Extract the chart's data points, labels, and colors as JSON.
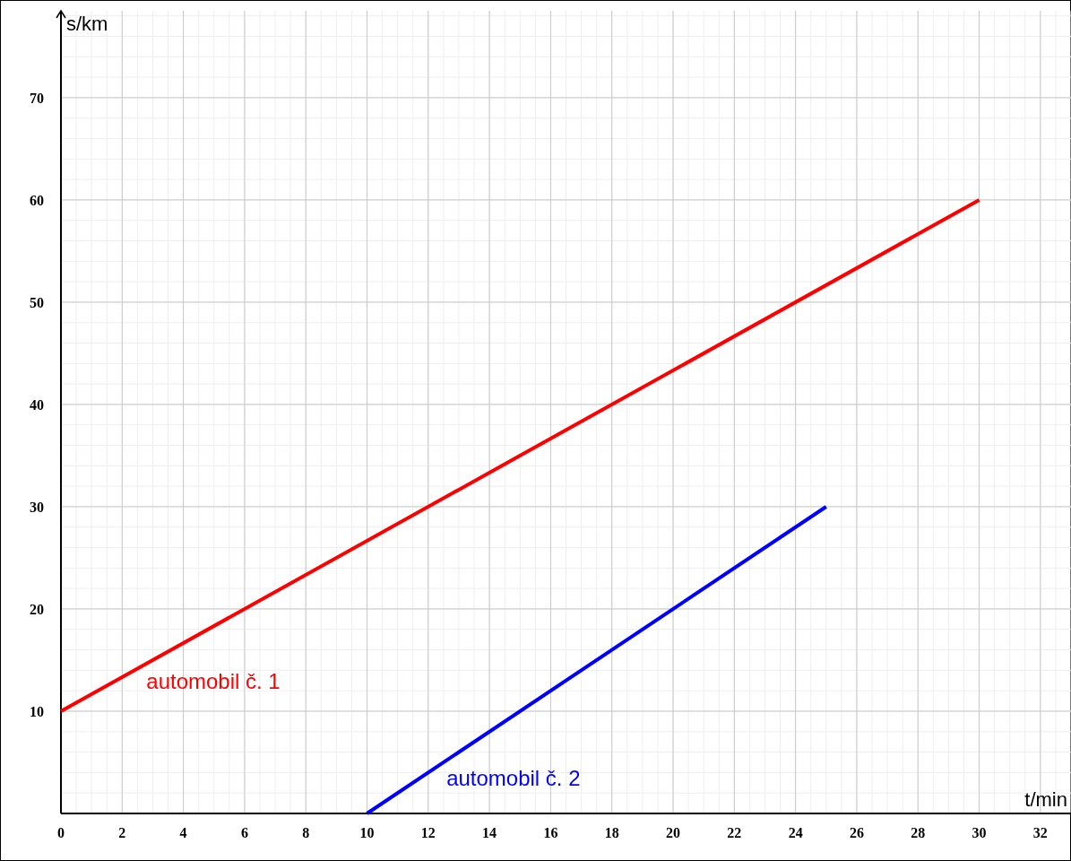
{
  "chart_data": {
    "type": "line",
    "xlabel": "t/min",
    "ylabel": "s/km",
    "xlim": [
      0,
      33
    ],
    "ylim": [
      0,
      78.5
    ],
    "xticks": [
      0,
      2,
      4,
      6,
      8,
      10,
      12,
      14,
      16,
      18,
      20,
      22,
      24,
      26,
      28,
      30,
      32
    ],
    "yticks": [
      10,
      20,
      30,
      40,
      50,
      60,
      70
    ],
    "grid": true,
    "line_style": "solid",
    "marker": "none",
    "series": [
      {
        "name": "automobil č. 1",
        "color": "#ff0000",
        "x": [
          0,
          30
        ],
        "values": [
          10,
          60
        ]
      },
      {
        "name": "automobil č. 2",
        "color": "#0000ff",
        "x": [
          10,
          25
        ],
        "values": [
          0,
          30
        ]
      }
    ]
  }
}
